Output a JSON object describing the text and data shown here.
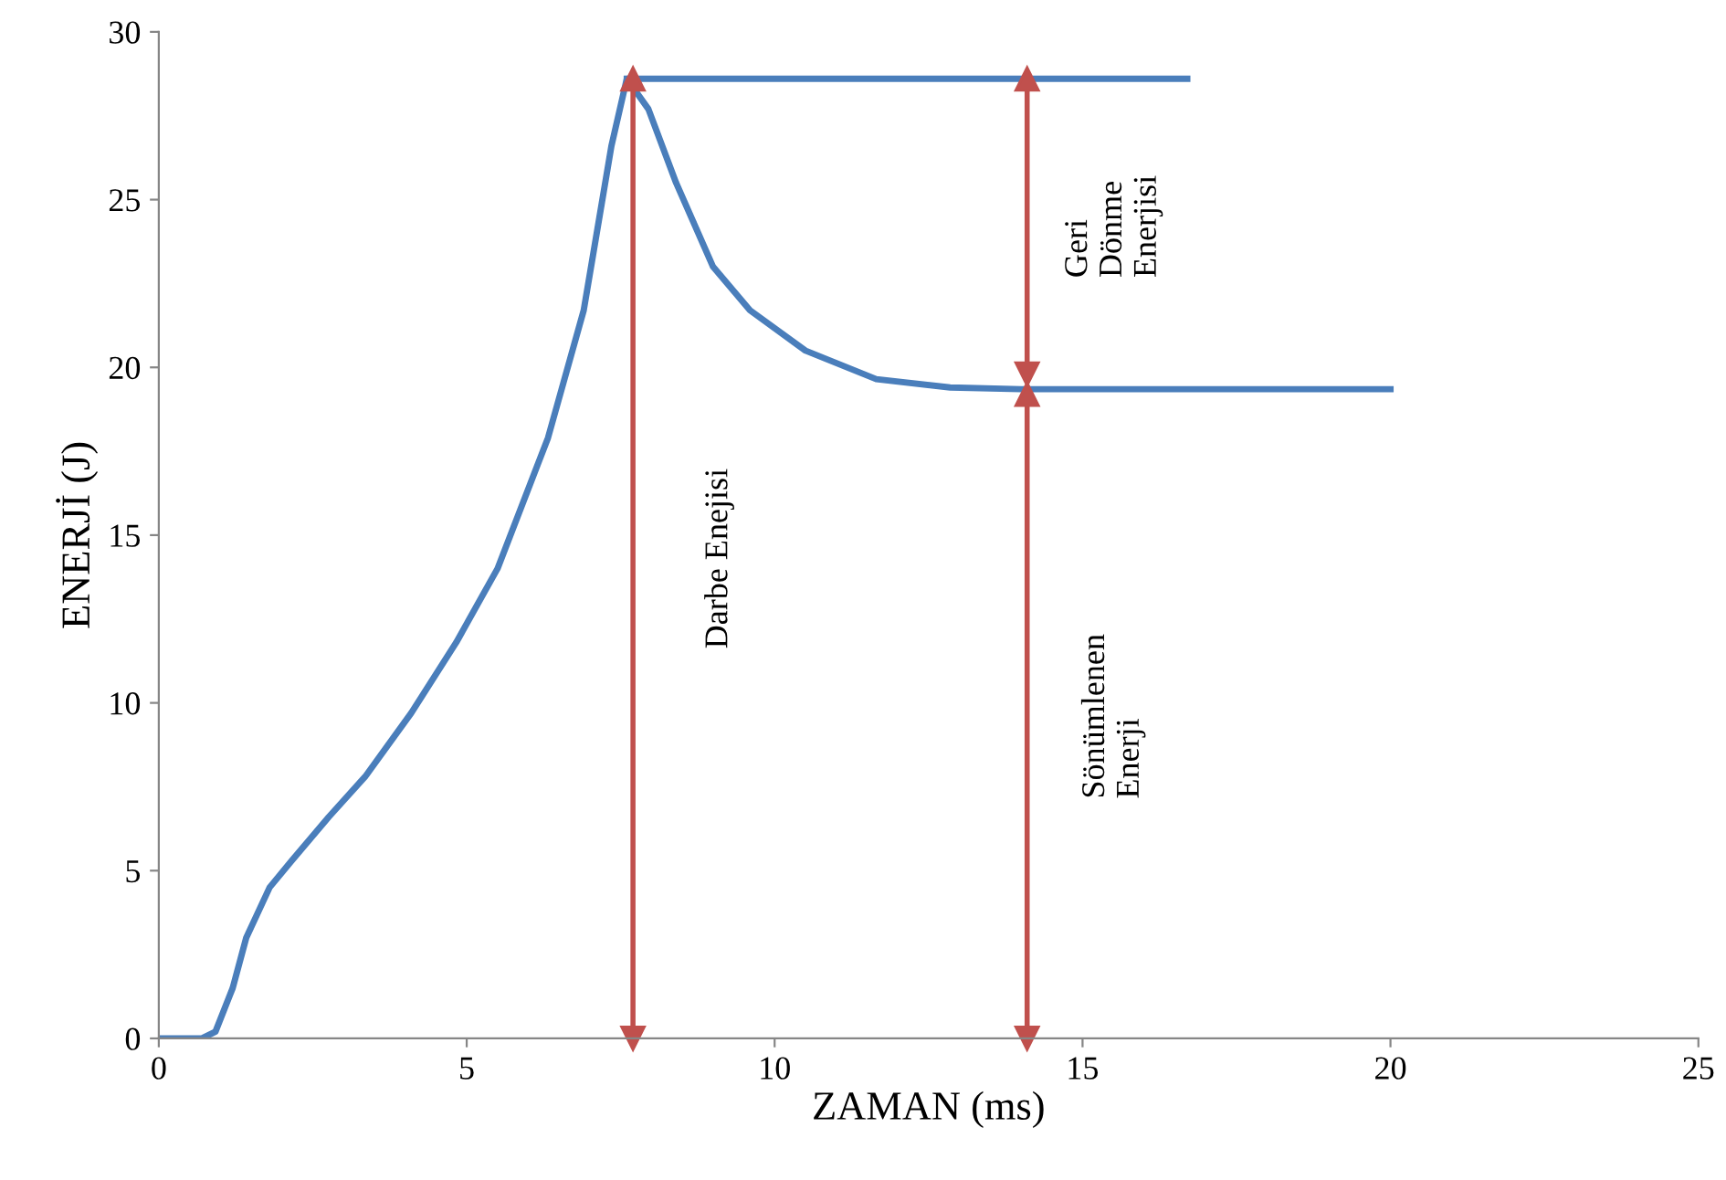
{
  "chart_data": {
    "type": "line",
    "xlabel": "ZAMAN (ms)",
    "ylabel": "ENERJİ (J)",
    "series": [
      {
        "color": "#4a7ebb",
        "x": [
          0,
          0.7,
          0.92,
          1.2,
          1.42,
          1.8,
          2.16,
          2.76,
          3.35,
          4.1,
          4.83,
          5.5,
          6.32,
          6.9,
          7.35,
          7.6,
          7.95,
          8.4,
          9.0,
          9.6,
          10.5,
          11.65,
          12.85,
          14,
          16,
          18,
          20
        ],
        "values": [
          0,
          0,
          0.2,
          1.5,
          3,
          4.5,
          5.3,
          6.6,
          7.8,
          9.7,
          11.8,
          14,
          17.9,
          21.7,
          26.6,
          28.6,
          27.7,
          25.5,
          23.0,
          21.7,
          20.5,
          19.65,
          19.4,
          19.35,
          19.35,
          19.35,
          19.35
        ]
      },
      {
        "color": "#4a7ebb",
        "x": [
          7.6,
          16.7
        ],
        "values": [
          28.6,
          28.6
        ]
      },
      {
        "color": "#c0504d",
        "marker": "triangle",
        "x": [
          7.7,
          7.7
        ],
        "values": [
          0,
          28.6
        ]
      },
      {
        "color": "#c0504d",
        "marker": "triangle",
        "x": [
          14.1,
          14.1
        ],
        "values": [
          19.8,
          28.6
        ]
      },
      {
        "color": "#c0504d",
        "marker": "triangle",
        "x": [
          14.1,
          14.1
        ],
        "values": [
          0,
          19.2
        ]
      }
    ],
    "annotations": [
      "Darbe Enejisi",
      "Geri\nDönme\nEnerjisi",
      "Sönümlenen\nEnerji"
    ],
    "xlim": [
      0,
      25
    ],
    "ylim": [
      0,
      30
    ],
    "xticks": [
      0,
      5,
      10,
      15,
      20,
      25
    ],
    "yticks": [
      0,
      5,
      10,
      15,
      20,
      25,
      30
    ],
    "grid": false,
    "legend": false
  }
}
